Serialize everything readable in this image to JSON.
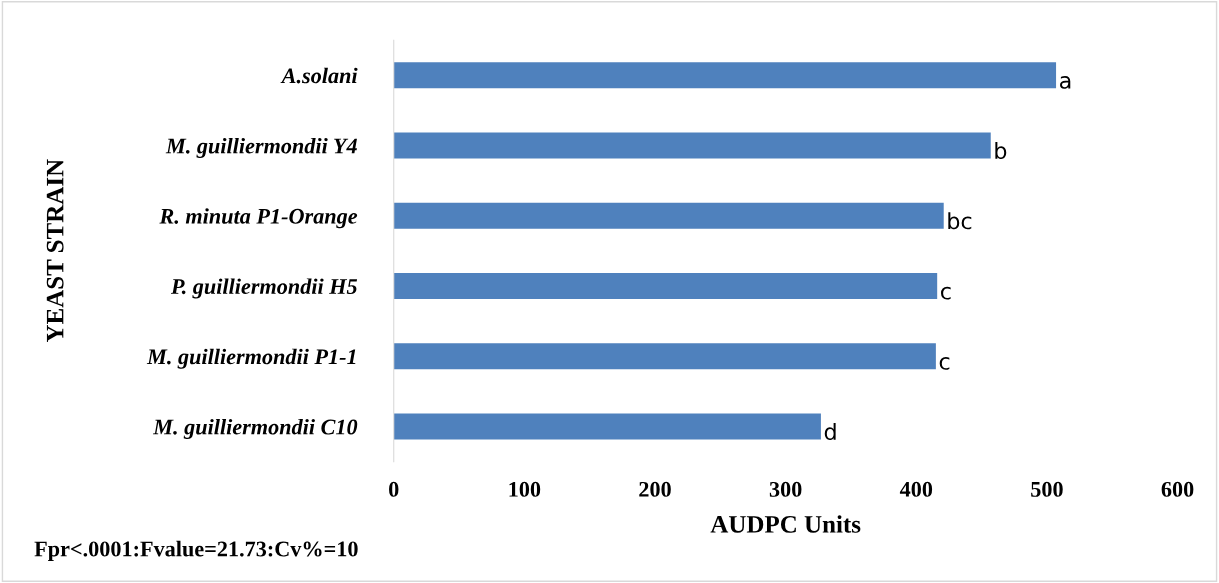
{
  "chart_data": {
    "type": "bar",
    "orientation": "horizontal",
    "ylabel": "YEAST STRAIN",
    "xlabel": "AUDPC Units",
    "categories": [
      "A.solani",
      "M. guilliermondii Y4",
      "R. minuta P1-Orange",
      "P. guilliermondii H5",
      "M. guilliermondii P1-1",
      "M. guilliermondii C10"
    ],
    "values": [
      507,
      457,
      421,
      416,
      415,
      327
    ],
    "color": "#4f81bd",
    "xlim": [
      0,
      600
    ],
    "xticks": [
      0,
      100,
      200,
      300,
      400,
      500,
      600
    ],
    "grid": false,
    "legend": false,
    "annotations": [
      {
        "text": "a",
        "x": 507,
        "y": "A.solani"
      },
      {
        "text": "b",
        "x": 457,
        "y": "M. guilliermondii Y4"
      },
      {
        "text": "bc",
        "x": 421,
        "y": "R. minuta P1-Orange"
      },
      {
        "text": "c",
        "x": 416,
        "y": "P. guilliermondii H5"
      },
      {
        "text": "c",
        "x": 415,
        "y": "M. guilliermondii P1-1"
      },
      {
        "text": "d",
        "x": 327,
        "y": "M. guilliermondii C10"
      },
      "Fpr<.0001:Fvalue=21.73:Cv%=10"
    ]
  }
}
